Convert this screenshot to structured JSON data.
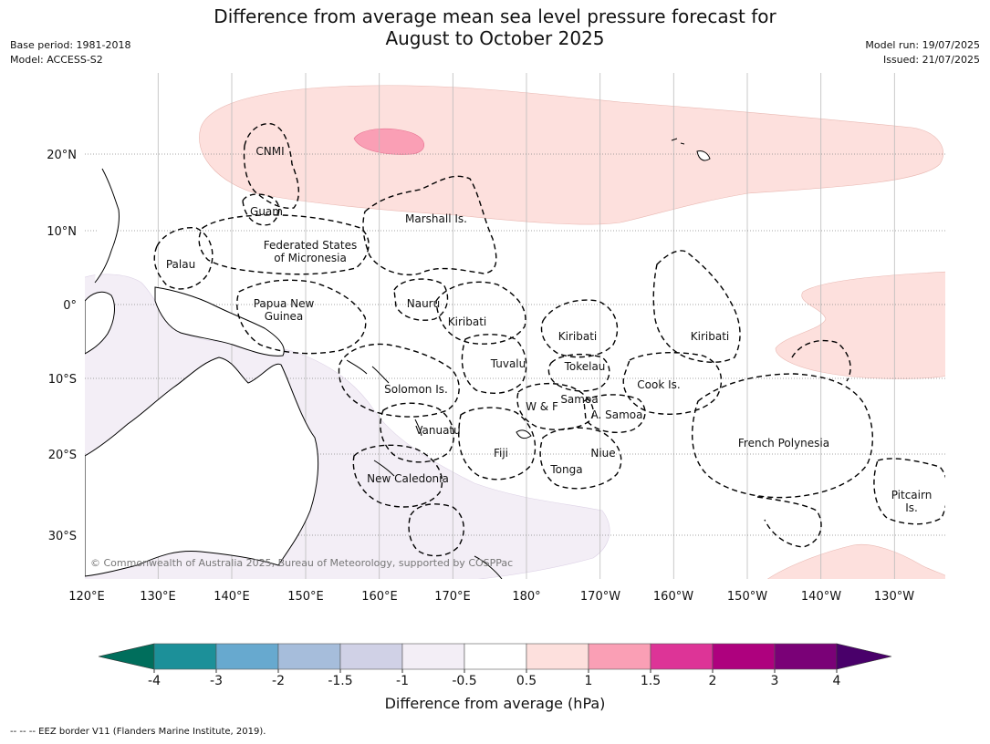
{
  "header": {
    "title_line1": "Difference from average mean sea level pressure forecast for",
    "title_line2": "August to October 2025",
    "base_period": "Base period: 1981-2018",
    "model": "Model: ACCESS-S2",
    "model_run": "Model run: 19/07/2025",
    "issued": "Issued: 21/07/2025"
  },
  "map": {
    "copyright": "© Commonwealth of Australia 2025, Bureau of Meteorology, supported by COSPPac",
    "lat_labels": [
      "20°N",
      "10°N",
      "0°",
      "10°S",
      "20°S",
      "30°S"
    ],
    "lon_labels": [
      "120°E",
      "130°E",
      "140°E",
      "150°E",
      "160°E",
      "170°E",
      "180°",
      "170°W",
      "160°W",
      "150°W",
      "140°W",
      "130°W"
    ],
    "regions": [
      {
        "lines": [
          "CNMI"
        ]
      },
      {
        "lines": [
          "Guam"
        ]
      },
      {
        "lines": [
          "Marshall Is."
        ]
      },
      {
        "lines": [
          "Federated States",
          "of Micronesia"
        ]
      },
      {
        "lines": [
          "Palau"
        ]
      },
      {
        "lines": [
          "Papua New",
          "Guinea"
        ]
      },
      {
        "lines": [
          "Nauru"
        ]
      },
      {
        "lines": [
          "Kiribati"
        ]
      },
      {
        "lines": [
          "Kiribati"
        ]
      },
      {
        "lines": [
          "Kiribati"
        ]
      },
      {
        "lines": [
          "Tuvalu"
        ]
      },
      {
        "lines": [
          "Tokelau"
        ]
      },
      {
        "lines": [
          "Solomon Is."
        ]
      },
      {
        "lines": [
          "Cook Is."
        ]
      },
      {
        "lines": [
          "Samoa"
        ]
      },
      {
        "lines": [
          "W & F"
        ]
      },
      {
        "lines": [
          "A. Samoa"
        ]
      },
      {
        "lines": [
          "Vanuatu"
        ]
      },
      {
        "lines": [
          "Fiji"
        ]
      },
      {
        "lines": [
          "Niue"
        ]
      },
      {
        "lines": [
          "French Polynesia"
        ]
      },
      {
        "lines": [
          "Tonga"
        ]
      },
      {
        "lines": [
          "New Caledonia"
        ]
      },
      {
        "lines": [
          "Pitcairn",
          "Is."
        ]
      }
    ]
  },
  "colorbar": {
    "label": "Difference from average (hPa)",
    "ticks": [
      "-4",
      "-3",
      "-2",
      "-1.5",
      "-1",
      "-0.5",
      "0.5",
      "1",
      "1.5",
      "2",
      "3",
      "4"
    ],
    "colors": {
      "under": "#006e5c",
      "bins": [
        "#1c9099",
        "#67a9cf",
        "#a6bddb",
        "#d0d1e6",
        "#f3eef6",
        "#ffffff",
        "#fde0dd",
        "#fa9fb5",
        "#dd3497",
        "#ae017e",
        "#7a0177"
      ],
      "over": "#49006a"
    }
  },
  "footer": {
    "eez_note": "--  --  -- EEZ border V11 (Flanders Marine Institute, 2019)."
  }
}
